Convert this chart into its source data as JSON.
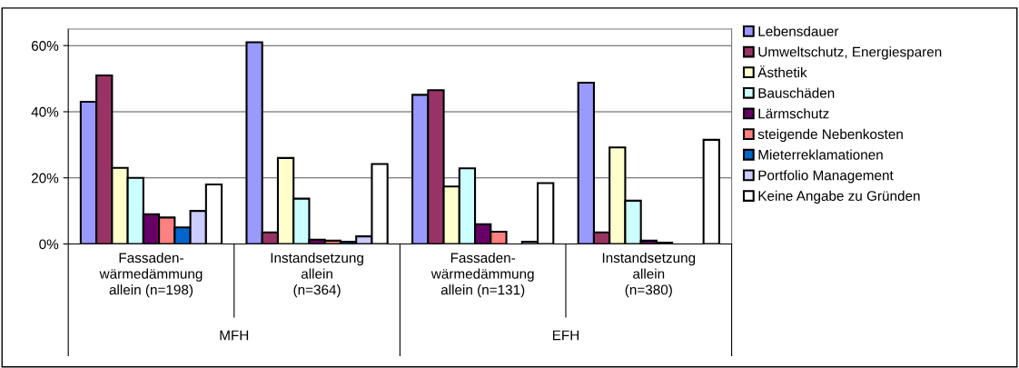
{
  "chart_data": {
    "type": "bar",
    "categories": [
      "Fassaden-\nwärmedämmung\nallein (n=198)",
      "Instandsetzung\nallein\n(n=364)",
      "Fassaden-\nwärmedämmung\nallein (n=131)",
      "Instandsetzung\nallein\n(n=380)"
    ],
    "annotations": [
      "MFH",
      "EFH"
    ],
    "series": [
      {
        "name": "Lebensdauer",
        "color": "#9999ff",
        "values": [
          43,
          61,
          45.1,
          48.8
        ]
      },
      {
        "name": "Umweltschutz, Energiesparen",
        "color": "#993366",
        "values": [
          51,
          3.5,
          46.5,
          3.5
        ]
      },
      {
        "name": "Ästhetik",
        "color": "#ffffcc",
        "values": [
          23,
          26,
          17.4,
          29.2
        ]
      },
      {
        "name": "Bauschäden",
        "color": "#ccffff",
        "values": [
          20,
          13.7,
          22.9,
          13.1
        ]
      },
      {
        "name": "Lärmschutz",
        "color": "#660066",
        "values": [
          9,
          1.3,
          6,
          1
        ]
      },
      {
        "name": "steigende Nebenkosten",
        "color": "#ff8080",
        "values": [
          8,
          1,
          3.7,
          0.4
        ]
      },
      {
        "name": "Mieterreklamationen",
        "color": "#0066cc",
        "values": [
          5,
          0.7,
          null,
          null
        ]
      },
      {
        "name": "Portfolio Management",
        "color": "#ccccff",
        "values": [
          10,
          2.3,
          0.7,
          null
        ]
      },
      {
        "name": "Keine Angabe zu Gründen",
        "color": "#ffffff",
        "values": [
          18,
          24.2,
          18.4,
          31.5
        ]
      }
    ],
    "ylim": [
      0,
      65
    ],
    "yticks": [
      {
        "value": 0,
        "label": "0%"
      },
      {
        "value": 20,
        "label": "20%"
      },
      {
        "value": 40,
        "label": "40%"
      },
      {
        "value": 60,
        "label": "60%"
      }
    ],
    "grid": "y",
    "legend": "right"
  }
}
